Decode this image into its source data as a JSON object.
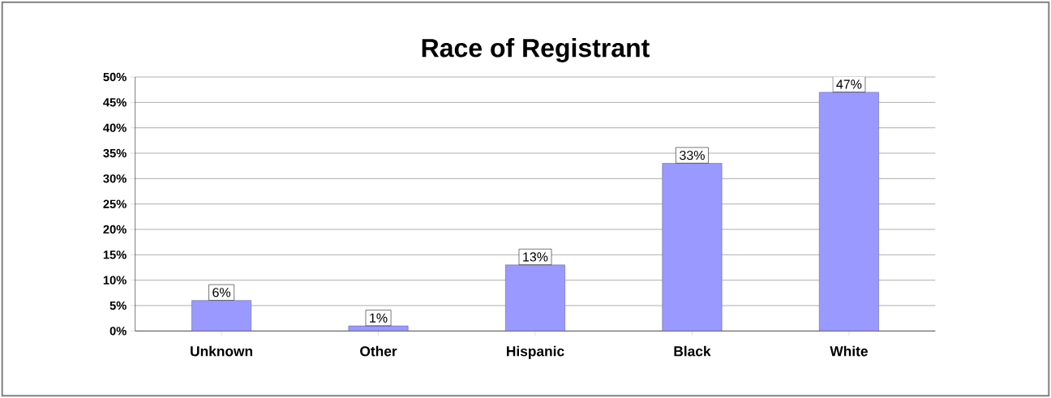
{
  "chart_data": {
    "type": "bar",
    "title": "Race of Registrant",
    "categories": [
      "Unknown",
      "Other",
      "Hispanic",
      "Black",
      "White"
    ],
    "values": [
      6,
      1,
      13,
      33,
      47
    ],
    "value_labels": [
      "6%",
      "1%",
      "13%",
      "33%",
      "47%"
    ],
    "color": "#9999ff",
    "ylim": [
      0,
      50
    ],
    "yticks": [
      {
        "value": 0,
        "label": "0%"
      },
      {
        "value": 5,
        "label": "5%"
      },
      {
        "value": 10,
        "label": "10%"
      },
      {
        "value": 15,
        "label": "15%"
      },
      {
        "value": 20,
        "label": "20%"
      },
      {
        "value": 25,
        "label": "25%"
      },
      {
        "value": 30,
        "label": "30%"
      },
      {
        "value": 35,
        "label": "35%"
      },
      {
        "value": 40,
        "label": "40%"
      },
      {
        "value": 45,
        "label": "45%"
      },
      {
        "value": 50,
        "label": "50%"
      }
    ],
    "grid": "y"
  }
}
